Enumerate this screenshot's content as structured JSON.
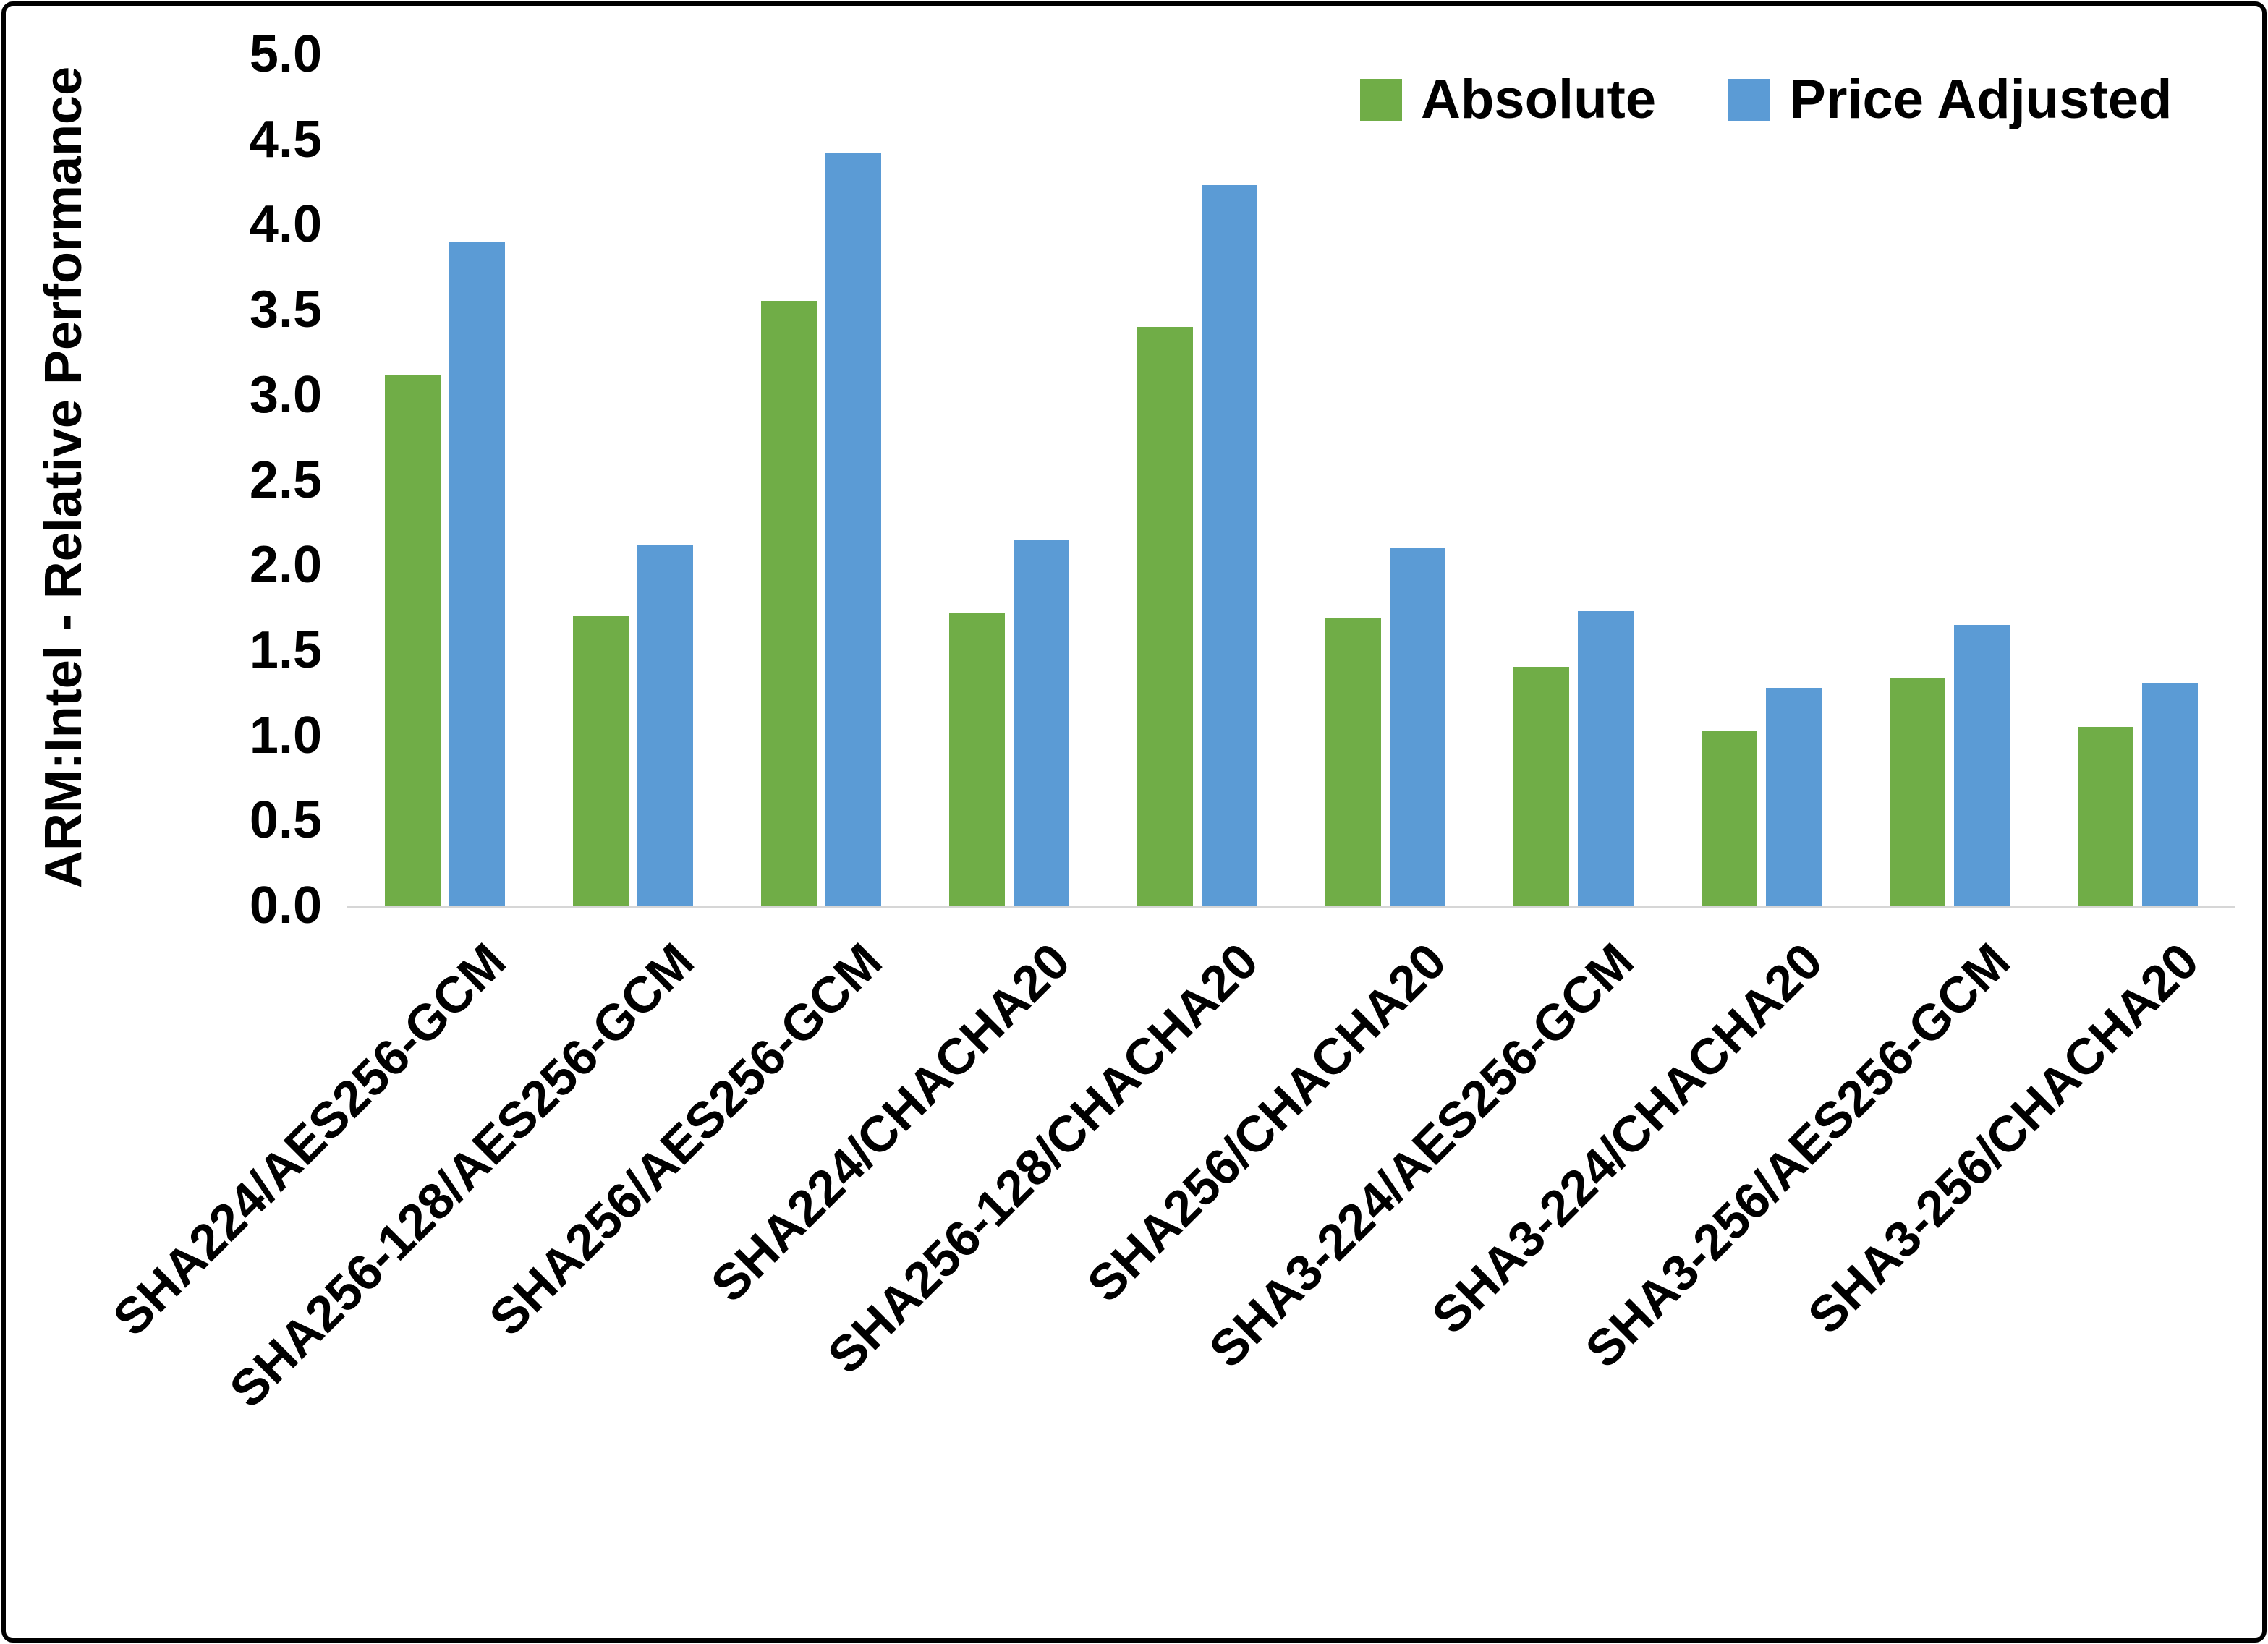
{
  "chart_data": {
    "type": "bar",
    "title": "",
    "xlabel": "",
    "ylabel": "ARM:Intel - Relative Performance",
    "ylim": [
      0,
      5
    ],
    "ytick_step": 0.5,
    "grid": false,
    "legend_position": "top-right",
    "categories": [
      "SHA224/AES256-GCM",
      "SHA256-128/AES256-GCM",
      "SHA256/AES256-GCM",
      "SHA224/CHACHA20",
      "SHA256-128/CHACHA20",
      "SHA256/CHACHA20",
      "SHA3-224/AES256-GCM",
      "SHA3-224/CHACHA20",
      "SHA3-256/AES256-GCM",
      "SHA3-256/CHACHA20"
    ],
    "series": [
      {
        "name": "Absolute",
        "color": "#70AD47",
        "values": [
          3.12,
          1.7,
          3.55,
          1.72,
          3.4,
          1.69,
          1.4,
          1.03,
          1.34,
          1.05
        ]
      },
      {
        "name": "Price Adjusted",
        "color": "#5B9BD5",
        "values": [
          3.9,
          2.12,
          4.42,
          2.15,
          4.23,
          2.1,
          1.73,
          1.28,
          1.65,
          1.31
        ]
      }
    ]
  }
}
